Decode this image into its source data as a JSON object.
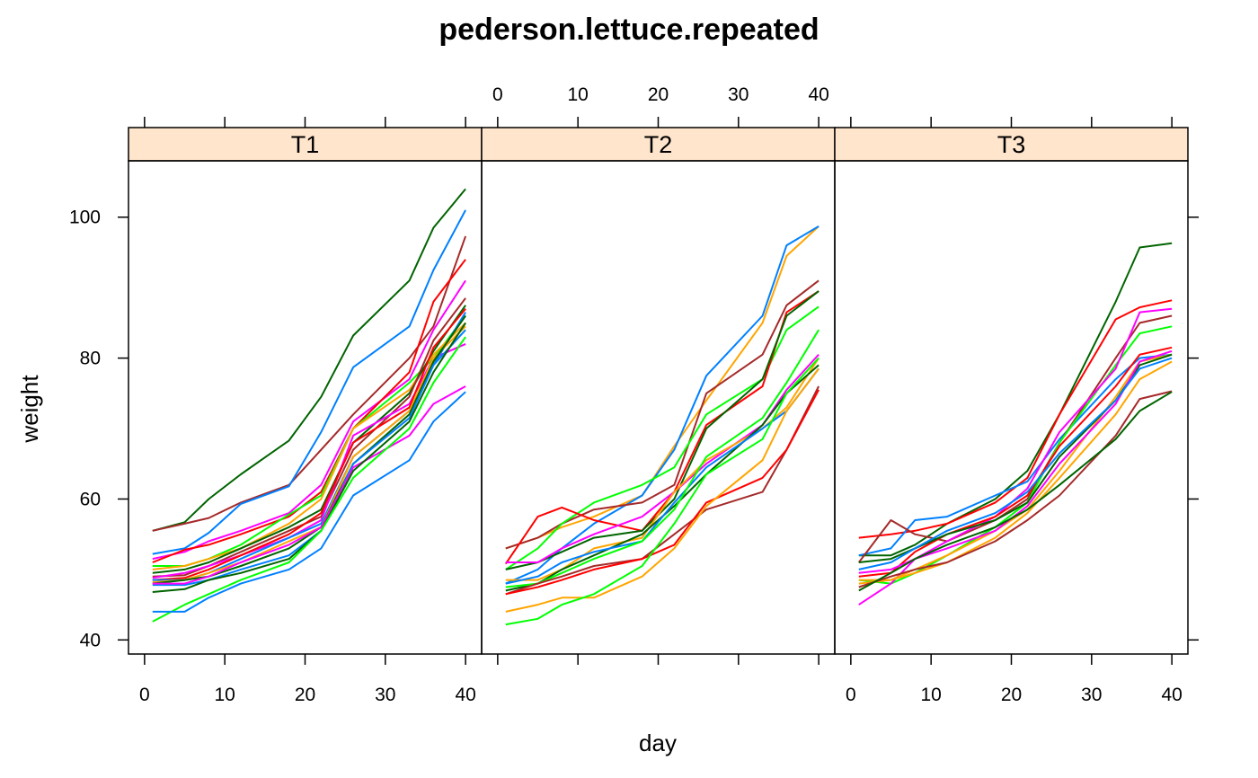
{
  "chart_data": {
    "type": "line",
    "title": "pederson.lettuce.repeated",
    "xlabel": "day",
    "ylabel": "weight",
    "xlim": [
      -2,
      42
    ],
    "ylim": [
      38,
      108
    ],
    "x_ticks": [
      0,
      10,
      20,
      30,
      40
    ],
    "y_ticks": [
      40,
      60,
      80,
      100
    ],
    "x": [
      1,
      5,
      8,
      12,
      18,
      22,
      26,
      33,
      36,
      40
    ],
    "grid": false,
    "legend": "none",
    "strip_color": "#ffe5cc",
    "colors": [
      "#0080ff",
      "#ff00ff",
      "#006400",
      "#ff0000",
      "#ffa500",
      "#00ff00",
      "#a52a2a"
    ],
    "panels": [
      {
        "label": "T1",
        "series": [
          {
            "color": "#006400",
            "values": [
              55.5,
              56.7,
              60.0,
              63.5,
              68.3,
              74.5,
              83.2,
              91.0,
              98.5,
              104.0
            ]
          },
          {
            "color": "#a52a2a",
            "values": [
              55.5,
              56.5,
              57.3,
              59.5,
              62.0,
              67.0,
              72.0,
              80.0,
              84.5,
              97.3
            ]
          },
          {
            "color": "#0080ff",
            "values": [
              52.2,
              53.0,
              55.2,
              59.3,
              61.8,
              69.5,
              78.7,
              84.5,
              92.5,
              101.0
            ]
          },
          {
            "color": "#ff00ff",
            "values": [
              51.5,
              52.5,
              54.0,
              55.5,
              58.0,
              62.0,
              71.0,
              77.0,
              84.0,
              91.0
            ]
          },
          {
            "color": "#ff0000",
            "values": [
              51.0,
              52.8,
              53.5,
              55.0,
              57.5,
              61.0,
              70.0,
              78.0,
              88.0,
              94.0
            ]
          },
          {
            "color": "#00ff00",
            "values": [
              50.5,
              50.5,
              51.5,
              53.5,
              57.8,
              60.5,
              70.0,
              76.5,
              80.0,
              86.0
            ]
          },
          {
            "color": "#ffa500",
            "values": [
              50.0,
              50.5,
              51.5,
              53.0,
              56.5,
              60.0,
              70.0,
              75.5,
              80.5,
              85.0
            ]
          },
          {
            "color": "#006400",
            "values": [
              49.5,
              50.0,
              51.0,
              53.0,
              56.0,
              58.5,
              68.0,
              75.0,
              81.0,
              87.5
            ]
          },
          {
            "color": "#a52a2a",
            "values": [
              49.0,
              49.2,
              50.5,
              52.5,
              55.5,
              57.5,
              67.0,
              74.5,
              82.5,
              88.5
            ]
          },
          {
            "color": "#ff00ff",
            "values": [
              48.8,
              49.5,
              50.5,
              52.0,
              54.5,
              57.0,
              69.0,
              73.5,
              80.0,
              82.0
            ]
          },
          {
            "color": "#ff0000",
            "values": [
              48.5,
              48.8,
              50.0,
              52.0,
              55.0,
              58.0,
              68.0,
              73.0,
              81.5,
              87.0
            ]
          },
          {
            "color": "#0080ff",
            "values": [
              48.5,
              48.5,
              49.5,
              51.5,
              54.5,
              56.5,
              66.0,
              72.5,
              79.0,
              86.5
            ]
          },
          {
            "color": "#ffa500",
            "values": [
              48.2,
              48.5,
              49.5,
              51.0,
              54.0,
              56.0,
              66.0,
              72.5,
              80.0,
              84.5
            ]
          },
          {
            "color": "#006400",
            "values": [
              48.0,
              48.5,
              49.0,
              50.5,
              53.0,
              56.0,
              65.0,
              72.0,
              79.5,
              86.0
            ]
          },
          {
            "color": "#0080ff",
            "values": [
              47.8,
              47.8,
              48.5,
              50.0,
              52.0,
              55.5,
              65.0,
              71.5,
              79.0,
              84.0
            ]
          },
          {
            "color": "#ff00ff",
            "values": [
              48.0,
              48.0,
              49.0,
              51.0,
              53.5,
              56.0,
              64.5,
              69.0,
              73.5,
              76.0
            ]
          },
          {
            "color": "#006400",
            "values": [
              46.8,
              47.2,
              48.5,
              49.5,
              51.5,
              55.5,
              64.0,
              71.0,
              78.0,
              85.0
            ]
          },
          {
            "color": "#00ff00",
            "values": [
              42.6,
              45.0,
              46.5,
              48.5,
              51.0,
              55.5,
              63.0,
              70.0,
              76.5,
              83.0
            ]
          },
          {
            "color": "#0080ff",
            "values": [
              44.0,
              44.0,
              46.0,
              48.0,
              50.0,
              53.0,
              60.5,
              65.5,
              71.0,
              75.2
            ]
          }
        ]
      },
      {
        "label": "T2",
        "series": [
          {
            "color": "#ffa500",
            "values": [
              53.0,
              54.5,
              56.0,
              57.5,
              60.5,
              67.5,
              74.0,
              85.0,
              94.5,
              98.7
            ]
          },
          {
            "color": "#0080ff",
            "values": [
              48.0,
              50.0,
              53.0,
              56.5,
              60.5,
              67.0,
              77.5,
              86.0,
              96.0,
              98.7
            ]
          },
          {
            "color": "#a52a2a",
            "values": [
              53.0,
              54.5,
              56.5,
              58.5,
              59.5,
              62.0,
              75.0,
              80.5,
              87.5,
              91.0
            ]
          },
          {
            "color": "#00ff00",
            "values": [
              50.0,
              53.0,
              56.5,
              59.5,
              62.0,
              64.5,
              72.0,
              77.0,
              84.0,
              87.3
            ]
          },
          {
            "color": "#ff0000",
            "values": [
              50.8,
              57.5,
              58.8,
              57.0,
              55.5,
              61.0,
              70.5,
              76.0,
              86.5,
              89.5
            ]
          },
          {
            "color": "#006400",
            "values": [
              50.0,
              51.0,
              52.5,
              54.5,
              55.5,
              60.0,
              70.0,
              77.0,
              86.0,
              89.5
            ]
          },
          {
            "color": "#ff00ff",
            "values": [
              51.0,
              51.0,
              53.0,
              55.0,
              57.5,
              61.0,
              65.0,
              70.5,
              75.5,
              80.5
            ]
          },
          {
            "color": "#ffa500",
            "values": [
              48.5,
              48.5,
              50.0,
              53.0,
              54.5,
              61.0,
              65.5,
              70.0,
              73.0,
              80.0
            ]
          },
          {
            "color": "#006400",
            "values": [
              47.0,
              48.0,
              50.0,
              52.0,
              55.0,
              59.0,
              63.5,
              70.5,
              75.0,
              79.0
            ]
          },
          {
            "color": "#0080ff",
            "values": [
              48.0,
              49.0,
              51.0,
              52.5,
              54.0,
              59.5,
              64.5,
              70.0,
              72.5,
              78.5
            ]
          },
          {
            "color": "#00ff00",
            "values": [
              47.5,
              48.0,
              49.5,
              51.5,
              54.0,
              58.5,
              66.0,
              71.5,
              76.5,
              84.0
            ]
          },
          {
            "color": "#a52a2a",
            "values": [
              46.5,
              48.0,
              49.0,
              50.5,
              51.5,
              55.0,
              58.5,
              61.0,
              67.0,
              76.0
            ]
          },
          {
            "color": "#ff0000",
            "values": [
              46.5,
              47.5,
              48.5,
              50.0,
              51.5,
              53.5,
              59.5,
              63.0,
              67.0,
              75.5
            ]
          },
          {
            "color": "#ffa500",
            "values": [
              44.0,
              45.0,
              46.0,
              46.0,
              49.0,
              53.0,
              59.0,
              65.5,
              72.5,
              78.5
            ]
          },
          {
            "color": "#00ff00",
            "values": [
              42.2,
              43.0,
              45.0,
              46.5,
              50.5,
              56.5,
              63.5,
              68.5,
              75.0,
              80.0
            ]
          }
        ]
      },
      {
        "label": "T3",
        "series": [
          {
            "color": "#006400",
            "values": [
              52.0,
              52.0,
              53.5,
              56.5,
              60.0,
              64.0,
              72.0,
              88.0,
              95.7,
              96.3
            ]
          },
          {
            "color": "#ff0000",
            "values": [
              54.5,
              55.0,
              55.5,
              56.5,
              59.5,
              63.0,
              72.0,
              85.5,
              87.2,
              88.2
            ]
          },
          {
            "color": "#0080ff",
            "values": [
              52.0,
              53.0,
              57.0,
              57.5,
              60.5,
              62.5,
              68.5,
              77.0,
              80.0,
              80.5
            ]
          },
          {
            "color": "#a52a2a",
            "values": [
              51.0,
              57.0,
              55.0,
              54.0,
              57.0,
              60.0,
              68.0,
              80.0,
              85.0,
              86.0
            ]
          },
          {
            "color": "#00ff00",
            "values": [
              48.5,
              48.0,
              49.5,
              52.0,
              56.0,
              59.5,
              68.0,
              79.0,
              83.5,
              84.5
            ]
          },
          {
            "color": "#ff00ff",
            "values": [
              45.0,
              48.0,
              51.5,
              54.0,
              57.5,
              61.5,
              69.5,
              78.5,
              86.5,
              87.0
            ]
          },
          {
            "color": "#ff0000",
            "values": [
              49.0,
              49.5,
              52.5,
              55.0,
              57.5,
              60.5,
              67.5,
              76.0,
              80.5,
              81.5
            ]
          },
          {
            "color": "#ffa500",
            "values": [
              48.5,
              48.5,
              50.0,
              52.0,
              55.5,
              58.5,
              64.0,
              74.5,
              79.5,
              80.5
            ]
          },
          {
            "color": "#006400",
            "values": [
              51.0,
              51.5,
              53.0,
              55.0,
              57.0,
              59.5,
              66.0,
              74.0,
              79.0,
              80.5
            ]
          },
          {
            "color": "#ff00ff",
            "values": [
              49.5,
              50.0,
              51.5,
              53.0,
              55.5,
              59.0,
              65.0,
              73.5,
              79.5,
              81.0
            ]
          },
          {
            "color": "#0080ff",
            "values": [
              50.0,
              51.0,
              53.0,
              55.5,
              58.0,
              61.0,
              66.5,
              74.0,
              78.5,
              80.0
            ]
          },
          {
            "color": "#ffa500",
            "values": [
              48.0,
              48.5,
              49.5,
              51.0,
              54.5,
              58.0,
              63.0,
              72.0,
              77.0,
              79.5
            ]
          },
          {
            "color": "#a52a2a",
            "values": [
              47.5,
              49.0,
              50.0,
              51.0,
              54.0,
              57.0,
              60.5,
              69.0,
              74.2,
              75.3
            ]
          },
          {
            "color": "#006400",
            "values": [
              47.0,
              49.5,
              51.5,
              53.5,
              56.0,
              58.5,
              62.0,
              68.5,
              72.5,
              75.2
            ]
          }
        ]
      }
    ]
  }
}
